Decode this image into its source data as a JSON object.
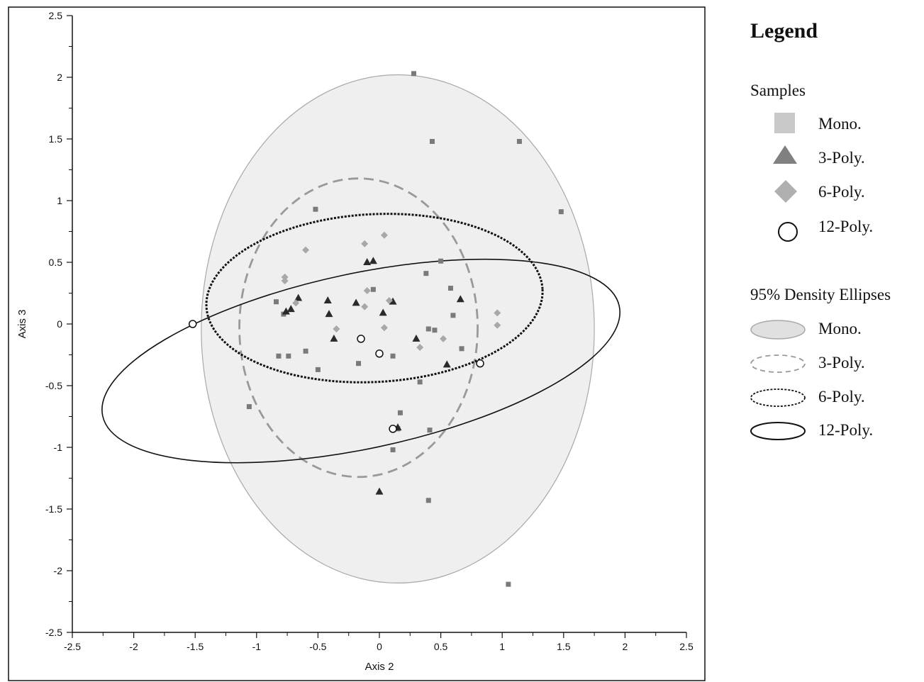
{
  "chart_data": {
    "type": "scatter",
    "title": "",
    "xlabel": "Axis 2",
    "ylabel": "Axis 3",
    "xlim": [
      -2.5,
      2.5
    ],
    "ylim": [
      -2.5,
      2.5
    ],
    "xticks": [
      "-2.5",
      "-2",
      "-1.5",
      "-1",
      "-0.5",
      "0",
      "0.5",
      "1",
      "1.5",
      "2",
      "2.5"
    ],
    "yticks": [
      "2.5",
      "2",
      "1.5",
      "1",
      "0.5",
      "0",
      "-0.5",
      "-1",
      "-1.5",
      "-2",
      "-2.5"
    ],
    "grid": false,
    "legend_position": "right",
    "series": [
      {
        "name": "Mono.",
        "marker": "square",
        "color": "#7a7a7a",
        "points": [
          [
            0.28,
            2.03
          ],
          [
            0.43,
            1.48
          ],
          [
            1.14,
            1.48
          ],
          [
            1.48,
            0.91
          ],
          [
            -0.52,
            0.93
          ],
          [
            -0.84,
            0.18
          ],
          [
            -0.78,
            0.08
          ],
          [
            -0.05,
            0.28
          ],
          [
            0.38,
            0.41
          ],
          [
            0.5,
            0.51
          ],
          [
            0.58,
            0.29
          ],
          [
            0.6,
            0.07
          ],
          [
            0.4,
            -0.04
          ],
          [
            0.45,
            -0.05
          ],
          [
            0.67,
            -0.2
          ],
          [
            0.11,
            -0.26
          ],
          [
            -0.82,
            -0.26
          ],
          [
            -0.74,
            -0.26
          ],
          [
            -0.6,
            -0.22
          ],
          [
            -0.5,
            -0.37
          ],
          [
            -0.17,
            -0.32
          ],
          [
            0.33,
            -0.47
          ],
          [
            -1.06,
            -0.67
          ],
          [
            0.17,
            -0.72
          ],
          [
            0.15,
            -0.85
          ],
          [
            0.41,
            -0.86
          ],
          [
            0.11,
            -1.02
          ],
          [
            0.4,
            -1.43
          ],
          [
            1.05,
            -2.11
          ]
        ]
      },
      {
        "name": "3-Poly.",
        "marker": "triangle",
        "color": "#2a2a2a",
        "points": [
          [
            -0.1,
            0.5
          ],
          [
            -0.05,
            0.51
          ],
          [
            -0.66,
            0.21
          ],
          [
            -0.42,
            0.19
          ],
          [
            -0.19,
            0.17
          ],
          [
            0.11,
            0.18
          ],
          [
            -0.72,
            0.12
          ],
          [
            -0.76,
            0.1
          ],
          [
            -0.41,
            0.08
          ],
          [
            0.03,
            0.09
          ],
          [
            0.66,
            0.2
          ],
          [
            -0.37,
            -0.12
          ],
          [
            0.3,
            -0.12
          ],
          [
            0.55,
            -0.33
          ],
          [
            0.15,
            -0.84
          ],
          [
            0.0,
            -1.36
          ]
        ]
      },
      {
        "name": "6-Poly.",
        "marker": "diamond",
        "color": "#a8a8a8",
        "points": [
          [
            0.04,
            0.72
          ],
          [
            -0.12,
            0.65
          ],
          [
            -0.6,
            0.6
          ],
          [
            -0.77,
            0.38
          ],
          [
            -0.77,
            0.35
          ],
          [
            -0.1,
            0.27
          ],
          [
            -0.68,
            0.17
          ],
          [
            0.08,
            0.19
          ],
          [
            -0.12,
            0.14
          ],
          [
            0.96,
            0.09
          ],
          [
            -0.35,
            -0.04
          ],
          [
            0.04,
            -0.03
          ],
          [
            0.96,
            -0.01
          ],
          [
            0.52,
            -0.12
          ],
          [
            0.33,
            -0.19
          ]
        ]
      },
      {
        "name": "12-Poly.",
        "marker": "circle",
        "color": "#111111",
        "points": [
          [
            -1.52,
            0.0
          ],
          [
            -0.15,
            -0.12
          ],
          [
            0.0,
            -0.24
          ],
          [
            0.82,
            -0.32
          ],
          [
            0.11,
            -0.85
          ]
        ]
      }
    ],
    "ellipses": [
      {
        "name": "Mono.",
        "style": "filled",
        "center": [
          0.15,
          -0.04
        ],
        "rx": 1.6,
        "ry": 2.06,
        "angle_deg": 0
      },
      {
        "name": "3-Poly.",
        "style": "dashed",
        "center": [
          -0.17,
          -0.03
        ],
        "rx": 0.97,
        "ry": 1.21,
        "angle_deg": 0
      },
      {
        "name": "6-Poly.",
        "style": "dotted",
        "center": [
          -0.04,
          0.21
        ],
        "rx": 1.37,
        "ry": 0.68,
        "angle_deg": -3
      },
      {
        "name": "12-Poly.",
        "style": "solid",
        "center": [
          -0.15,
          -0.3
        ],
        "rx": 2.15,
        "ry": 0.71,
        "angle_deg": -12
      }
    ]
  },
  "legend": {
    "title": "Legend",
    "samples_heading": "Samples",
    "samples": [
      {
        "label": "Mono.",
        "icon": "square-icon",
        "color": "#c8c8c8"
      },
      {
        "label": "3-Poly.",
        "icon": "triangle-icon",
        "color": "#808080"
      },
      {
        "label": "6-Poly.",
        "icon": "diamond-icon",
        "color": "#b0b0b0"
      },
      {
        "label": "12-Poly.",
        "icon": "circle-icon",
        "color": "#111111"
      }
    ],
    "ellipses_heading": "95% Density Ellipses",
    "ellipses": [
      {
        "label": "Mono.",
        "icon": "filled-ellipse-icon"
      },
      {
        "label": "3-Poly.",
        "icon": "dashed-ellipse-icon"
      },
      {
        "label": "6-Poly.",
        "icon": "dotted-ellipse-icon"
      },
      {
        "label": "12-Poly.",
        "icon": "solid-ellipse-icon"
      }
    ]
  }
}
